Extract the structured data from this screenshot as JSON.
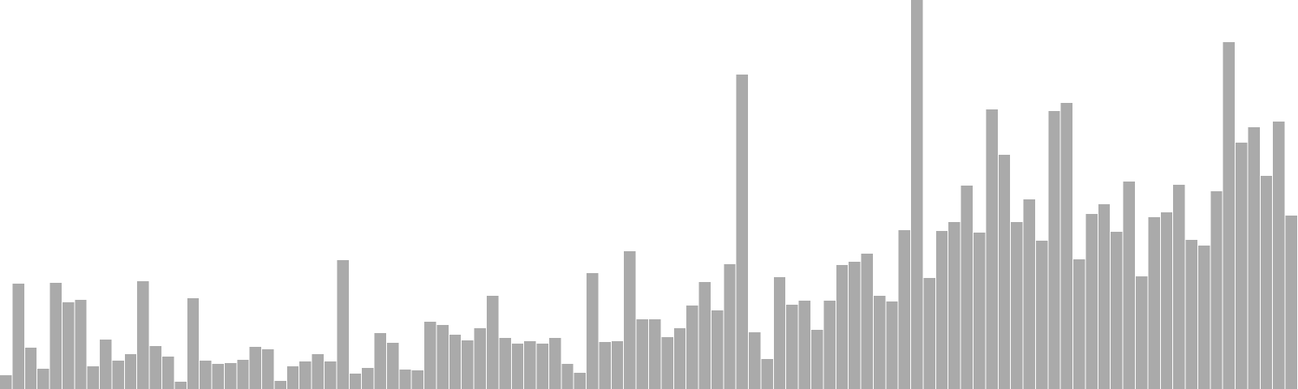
{
  "chart_data": {
    "type": "bar",
    "title": "",
    "xlabel": "",
    "ylabel": "",
    "grid": false,
    "legend": "none",
    "ylim": [
      0,
      480
    ],
    "bar_color": "#aaaaaa",
    "values": [
      17,
      130,
      51,
      25,
      131,
      107,
      110,
      28,
      61,
      35,
      43,
      133,
      53,
      40,
      9,
      112,
      35,
      31,
      32,
      36,
      52,
      49,
      10,
      28,
      34,
      43,
      34,
      159,
      19,
      26,
      69,
      57,
      24,
      23,
      83,
      79,
      67,
      60,
      75,
      115,
      63,
      56,
      59,
      56,
      63,
      31,
      20,
      143,
      58,
      59,
      170,
      86,
      86,
      64,
      75,
      103,
      132,
      97,
      154,
      388,
      70,
      37,
      138,
      104,
      109,
      73,
      109,
      153,
      157,
      167,
      115,
      108,
      196,
      480,
      137,
      195,
      206,
      251,
      193,
      345,
      289,
      206,
      234,
      183,
      343,
      353,
      160,
      216,
      228,
      194,
      256,
      139,
      212,
      218,
      252,
      184,
      177,
      244,
      428,
      304,
      323,
      263,
      330,
      214
    ]
  }
}
